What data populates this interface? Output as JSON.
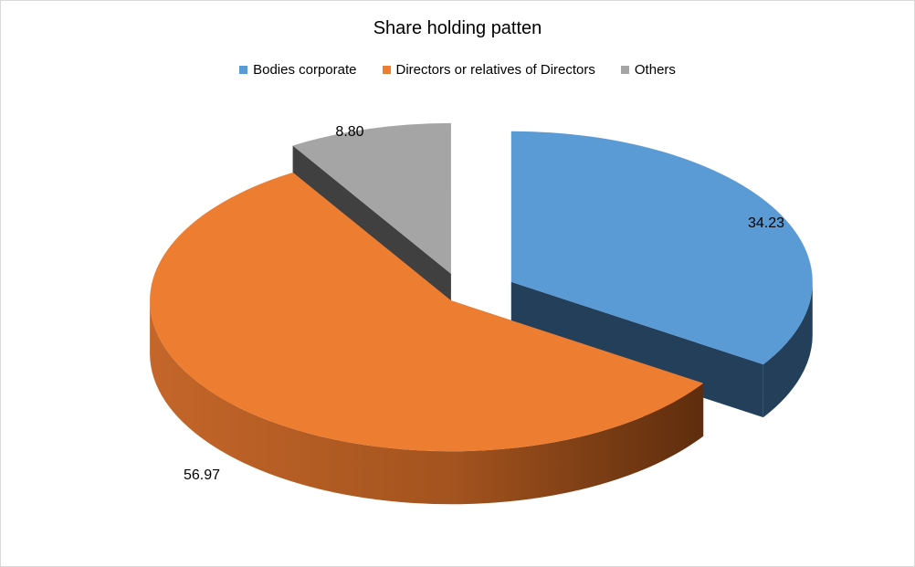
{
  "chart_data": {
    "type": "pie",
    "title": "Share holding patten",
    "legend_position": "top",
    "categories": [
      "Bodies corporate",
      "Directors or relatives of Directors",
      "Others"
    ],
    "values": [
      34.23,
      56.97,
      8.8
    ],
    "data_labels": [
      "34.23",
      "56.97",
      "8.80"
    ],
    "colors": {
      "top": [
        "#5b9bd5",
        "#ed7d31",
        "#a5a5a5"
      ],
      "side": [
        "#243f5a",
        "#7a3e15",
        "#404040"
      ]
    },
    "exploded": true,
    "three_d": true
  }
}
